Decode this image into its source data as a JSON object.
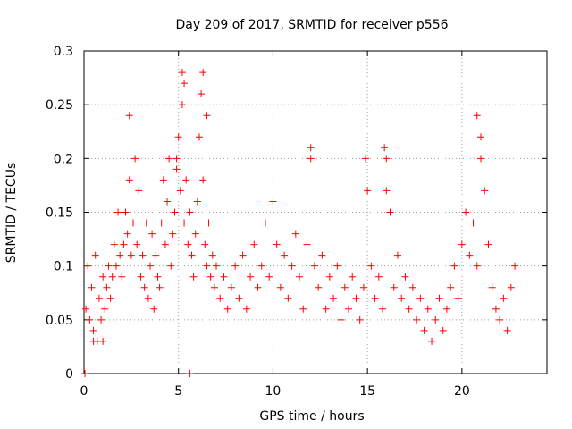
{
  "chart_data": {
    "type": "scatter",
    "title": "Day 209 of 2017, SRMTID for receiver p556",
    "xlabel": "GPS time / hours",
    "ylabel": "SRMTID / TECUs",
    "xlim": [
      0,
      24.5
    ],
    "ylim": [
      0,
      0.3
    ],
    "xticks": [
      0,
      5,
      10,
      15,
      20
    ],
    "xtick_labels": [
      "0",
      "5",
      "10",
      "15",
      "20"
    ],
    "yticks": [
      0,
      0.05,
      0.1,
      0.15,
      0.2,
      0.25,
      0.3
    ],
    "ytick_labels": [
      "0",
      "0.05",
      "0.1",
      "0.15",
      "0.2",
      "0.25",
      "0.3"
    ],
    "grid": true,
    "marker": "plus",
    "color": "#ff0000",
    "series": [
      {
        "name": "SRMTID",
        "x": [
          0.1,
          0.2,
          0.3,
          0.4,
          0.5,
          0.6,
          0.7,
          0.8,
          0.9,
          1.0,
          1.1,
          1.2,
          1.3,
          1.4,
          1.5,
          1.6,
          1.7,
          1.8,
          1.9,
          2.0,
          2.1,
          2.2,
          2.3,
          2.4,
          2.5,
          2.6,
          2.7,
          2.8,
          2.9,
          3.0,
          3.1,
          3.2,
          3.3,
          3.4,
          3.5,
          3.6,
          3.7,
          3.8,
          3.9,
          4.0,
          4.1,
          4.2,
          4.3,
          4.4,
          4.5,
          4.6,
          4.7,
          4.8,
          4.9,
          5.0,
          5.1,
          5.2,
          5.3,
          5.4,
          5.5,
          5.6,
          5.7,
          5.8,
          5.9,
          6.0,
          6.1,
          6.2,
          6.3,
          6.4,
          6.5,
          6.6,
          6.7,
          6.8,
          6.9,
          7.0,
          7.2,
          7.4,
          7.6,
          7.8,
          8.0,
          8.2,
          8.4,
          8.6,
          8.8,
          9.0,
          9.2,
          9.4,
          9.6,
          9.8,
          10.0,
          10.2,
          10.4,
          10.6,
          10.8,
          11.0,
          11.2,
          11.4,
          11.6,
          11.8,
          12.0,
          12.2,
          12.4,
          12.6,
          12.8,
          13.0,
          13.2,
          13.4,
          13.6,
          13.8,
          14.0,
          14.2,
          14.4,
          14.6,
          14.8,
          15.0,
          15.2,
          15.4,
          15.6,
          15.8,
          16.0,
          16.2,
          16.4,
          16.6,
          16.8,
          17.0,
          17.2,
          17.4,
          17.6,
          17.8,
          18.0,
          18.2,
          18.4,
          18.6,
          18.8,
          19.0,
          19.2,
          19.4,
          19.6,
          19.8,
          20.0,
          20.2,
          20.4,
          20.6,
          20.8,
          21.0,
          21.2,
          21.4,
          21.6,
          21.8,
          22.0,
          22.2,
          22.4,
          22.6,
          22.8,
          2.4,
          4.9,
          5.2,
          5.3,
          6.3,
          6.5,
          12.0,
          14.9,
          15.9,
          16.0,
          20.8,
          21.0,
          0.5,
          1.0,
          0.05,
          5.6
        ],
        "y": [
          0.06,
          0.1,
          0.05,
          0.08,
          0.04,
          0.11,
          0.03,
          0.07,
          0.05,
          0.09,
          0.06,
          0.08,
          0.1,
          0.07,
          0.09,
          0.12,
          0.1,
          0.15,
          0.11,
          0.09,
          0.12,
          0.15,
          0.13,
          0.18,
          0.11,
          0.14,
          0.2,
          0.12,
          0.17,
          0.09,
          0.11,
          0.08,
          0.14,
          0.07,
          0.1,
          0.13,
          0.06,
          0.11,
          0.09,
          0.08,
          0.14,
          0.18,
          0.12,
          0.16,
          0.2,
          0.1,
          0.13,
          0.15,
          0.19,
          0.22,
          0.17,
          0.25,
          0.14,
          0.18,
          0.12,
          0.15,
          0.11,
          0.09,
          0.13,
          0.16,
          0.22,
          0.26,
          0.18,
          0.12,
          0.1,
          0.14,
          0.09,
          0.11,
          0.08,
          0.1,
          0.07,
          0.09,
          0.06,
          0.08,
          0.1,
          0.07,
          0.11,
          0.06,
          0.09,
          0.12,
          0.08,
          0.1,
          0.14,
          0.09,
          0.16,
          0.12,
          0.08,
          0.11,
          0.07,
          0.1,
          0.13,
          0.09,
          0.06,
          0.12,
          0.2,
          0.1,
          0.08,
          0.11,
          0.06,
          0.09,
          0.07,
          0.1,
          0.05,
          0.08,
          0.06,
          0.09,
          0.07,
          0.05,
          0.08,
          0.17,
          0.1,
          0.07,
          0.09,
          0.06,
          0.2,
          0.15,
          0.08,
          0.11,
          0.07,
          0.09,
          0.06,
          0.08,
          0.05,
          0.07,
          0.04,
          0.06,
          0.03,
          0.05,
          0.07,
          0.04,
          0.06,
          0.08,
          0.1,
          0.07,
          0.12,
          0.15,
          0.11,
          0.14,
          0.1,
          0.22,
          0.17,
          0.12,
          0.08,
          0.06,
          0.05,
          0.07,
          0.04,
          0.08,
          0.1,
          0.24,
          0.2,
          0.28,
          0.27,
          0.28,
          0.24,
          0.21,
          0.2,
          0.21,
          0.17,
          0.24,
          0.2,
          0.03,
          0.03,
          0.0,
          0.0
        ]
      }
    ]
  }
}
